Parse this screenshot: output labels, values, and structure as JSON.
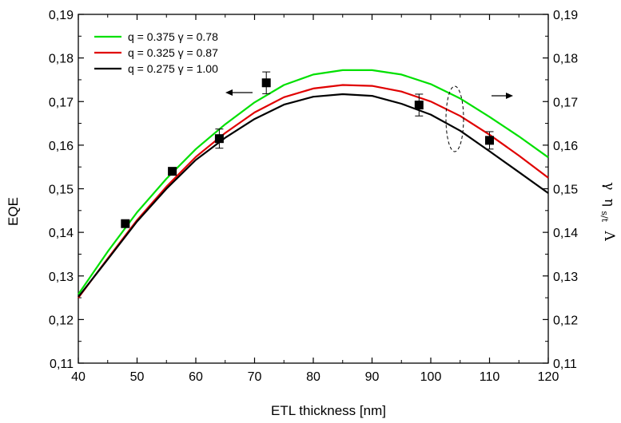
{
  "chart_data": {
    "type": "line",
    "xlabel": "ETL thickness [nm]",
    "ylabel_left": "EQE",
    "ylabel_right": {
      "gamma": "γ",
      "eta": "η",
      "eta_sub": "s/t",
      "lambda": "Λ"
    },
    "xlim": [
      40,
      120
    ],
    "ylim": [
      0.11,
      0.19
    ],
    "x_ticks": [
      "40",
      "50",
      "60",
      "70",
      "80",
      "90",
      "100",
      "110",
      "120"
    ],
    "y_ticks": [
      "0,11",
      "0,12",
      "0,13",
      "0,14",
      "0,15",
      "0,16",
      "0,17",
      "0,18",
      "0,19"
    ],
    "y_tick_values": [
      0.11,
      0.12,
      0.13,
      0.14,
      0.15,
      0.16,
      0.17,
      0.18,
      0.19
    ],
    "legend_position": "top-left",
    "grid": false,
    "series": [
      {
        "name": "q = 0.375 γ = 0.78",
        "color": "#00e000",
        "x": [
          40,
          45,
          50,
          55,
          60,
          65,
          70,
          75,
          80,
          85,
          90,
          95,
          100,
          105,
          110,
          115,
          120
        ],
        "y": [
          0.1258,
          0.1356,
          0.1446,
          0.1523,
          0.1591,
          0.1648,
          0.1698,
          0.1738,
          0.1762,
          0.1772,
          0.1772,
          0.1762,
          0.174,
          0.1707,
          0.1665,
          0.162,
          0.1572
        ]
      },
      {
        "name": "q = 0.325 γ = 0.87",
        "color": "#e00000",
        "x": [
          40,
          45,
          50,
          55,
          60,
          65,
          70,
          75,
          80,
          85,
          90,
          95,
          100,
          105,
          110,
          115,
          120
        ],
        "y": [
          0.125,
          0.134,
          0.1428,
          0.1505,
          0.1573,
          0.1628,
          0.1675,
          0.171,
          0.173,
          0.1738,
          0.1736,
          0.1723,
          0.17,
          0.1667,
          0.1624,
          0.1576,
          0.1525
        ]
      },
      {
        "name": "q = 0.275 γ = 1.00",
        "color": "#000000",
        "x": [
          40,
          45,
          50,
          55,
          60,
          65,
          70,
          75,
          80,
          85,
          90,
          95,
          100,
          105,
          110,
          115,
          120
        ],
        "y": [
          0.1252,
          0.1338,
          0.1425,
          0.15,
          0.1566,
          0.1617,
          0.166,
          0.1693,
          0.1711,
          0.1717,
          0.1713,
          0.1695,
          0.167,
          0.1633,
          0.1586,
          0.1538,
          0.149
        ]
      }
    ],
    "points": {
      "x": [
        48,
        56,
        64,
        72,
        98,
        110
      ],
      "y": [
        0.142,
        0.154,
        0.1615,
        0.1743,
        0.1692,
        0.1611
      ],
      "err": [
        0.0,
        0.0,
        0.0022,
        0.0025,
        0.0025,
        0.002
      ],
      "color": "#000000"
    }
  }
}
